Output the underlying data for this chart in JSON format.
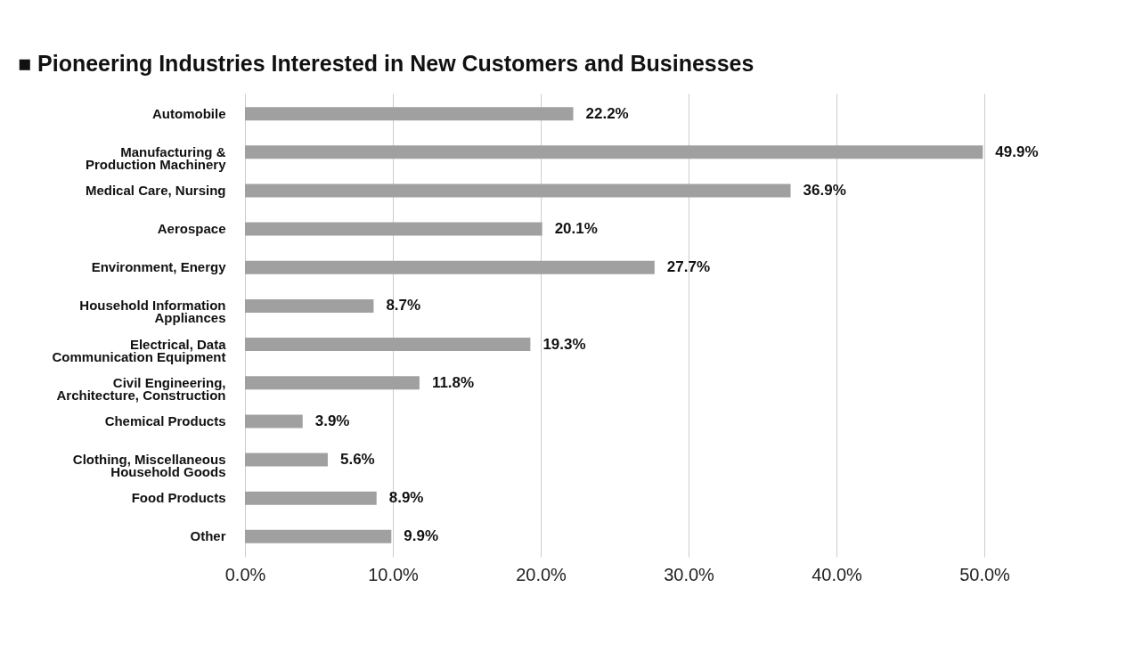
{
  "chart_data": {
    "type": "bar",
    "orientation": "horizontal",
    "title": "■ Pioneering Industries Interested in New Customers and Businesses",
    "categories": [
      "Automobile",
      "Manufacturing &\nProduction Machinery",
      "Medical Care, Nursing",
      "Aerospace",
      "Environment, Energy",
      "Household Information\nAppliances",
      "Electrical, Data\nCommunication Equipment",
      "Civil Engineering,\nArchitecture, Construction",
      "Chemical Products",
      "Clothing, Miscellaneous\nHousehold Goods",
      "Food Products",
      "Other"
    ],
    "values": [
      22.2,
      49.9,
      36.9,
      20.1,
      27.7,
      8.7,
      19.3,
      11.8,
      3.9,
      5.6,
      8.9,
      9.9
    ],
    "value_labels": [
      "22.2%",
      "49.9%",
      "36.9%",
      "20.1%",
      "27.7%",
      "8.7%",
      "19.3%",
      "11.8%",
      "3.9%",
      "5.6%",
      "8.9%",
      "9.9%"
    ],
    "color": "#a0a0a0",
    "xlim": [
      0,
      50
    ],
    "xticks": [
      {
        "value": 0,
        "label": "0.0%"
      },
      {
        "value": 10,
        "label": "10.0%"
      },
      {
        "value": 20,
        "label": "20.0%"
      },
      {
        "value": 30,
        "label": "30.0%"
      },
      {
        "value": 40,
        "label": "40.0%"
      },
      {
        "value": 50,
        "label": "50.0%"
      }
    ],
    "grid": "x"
  }
}
